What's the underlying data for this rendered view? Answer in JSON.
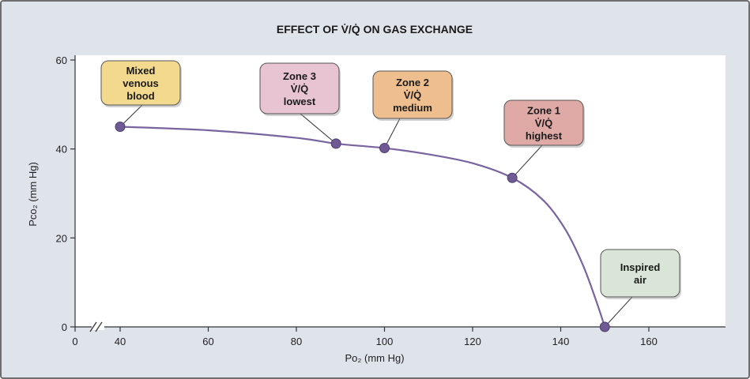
{
  "chart_data": {
    "type": "line",
    "title": "EFFECT OF V̇/Q̇ ON GAS EXCHANGE",
    "xlabel": "Po₂ (mm Hg)",
    "ylabel": "Pco₂ (mm Hg)",
    "xlim": [
      30,
      178
    ],
    "ylim": [
      0,
      62
    ],
    "x_ticks": [
      0,
      40,
      60,
      80,
      100,
      120,
      140,
      160
    ],
    "x_tick_labels": [
      "0",
      "40",
      "60",
      "80",
      "100",
      "120",
      "140",
      "160"
    ],
    "y_ticks": [
      0,
      20,
      40,
      60
    ],
    "y_tick_labels": [
      "0",
      "20",
      "40",
      "60"
    ],
    "axis_break": "x",
    "grid": false,
    "series": [
      {
        "curve": [
          [
            40,
            45
          ],
          [
            60,
            44.2
          ],
          [
            80,
            42.5
          ],
          [
            89,
            41.2
          ],
          [
            100,
            40.2
          ],
          [
            110,
            38.8
          ],
          [
            120,
            36.8
          ],
          [
            129,
            33.5
          ],
          [
            136,
            28.5
          ],
          [
            141,
            22
          ],
          [
            145,
            14
          ],
          [
            148,
            6
          ],
          [
            150,
            0
          ]
        ],
        "points": [
          {
            "x": 40,
            "y": 45
          },
          {
            "x": 89,
            "y": 41.2
          },
          {
            "x": 100,
            "y": 40.2
          },
          {
            "x": 129,
            "y": 33.5
          },
          {
            "x": 150,
            "y": 0
          }
        ]
      }
    ],
    "annotations": [
      {
        "lines": [
          "Mixed",
          "venous",
          "blood"
        ],
        "color": "#f3d98e",
        "point": 0
      },
      {
        "lines": [
          "Zone 3",
          "V̇/Q̇",
          "lowest"
        ],
        "color": "#e8c3d2",
        "point": 1
      },
      {
        "lines": [
          "Zone 2",
          "V̇/Q̇",
          "medium"
        ],
        "color": "#efbe8f",
        "point": 2
      },
      {
        "lines": [
          "Zone 1",
          "V̇/Q̇",
          "highest"
        ],
        "color": "#dfa9a6",
        "point": 3
      },
      {
        "lines": [
          "Inspired",
          "air"
        ],
        "color": "#d9e5d7",
        "point": 4
      }
    ],
    "colors": {
      "panel": "#dfe3ea",
      "plot": "#ffffff",
      "line": "#7a64a0",
      "marker": "#6f5a95"
    }
  }
}
